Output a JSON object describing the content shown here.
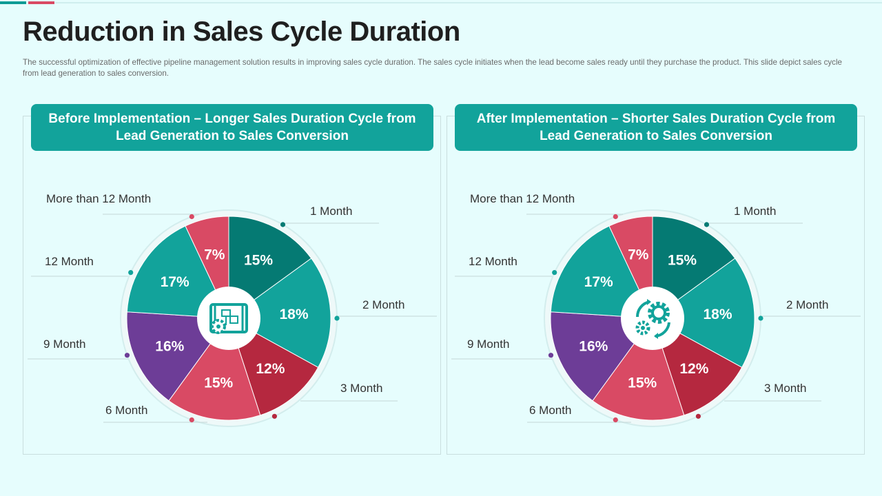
{
  "title": "Reduction in Sales Cycle Duration",
  "subtitle": "The successful optimization of effective pipeline management solution results in improving sales cycle duration. The sales cycle initiates when the lead become sales ready until they purchase the product. This slide depict sales cycle from lead generation to sales conversion.",
  "colors": {
    "dark_teal": "#057a73",
    "teal": "#12a39b",
    "crimson": "#b5283f",
    "pink_red": "#d94a64",
    "purple": "#6d3d97"
  },
  "panels": [
    {
      "header": "Before Implementation – Longer Sales Duration Cycle from Lead Generation to Sales Conversion",
      "center_icon": "blueprint-gear-icon"
    },
    {
      "header": "After Implementation – Shorter Sales Duration Cycle from Lead Generation to Sales Conversion",
      "center_icon": "gears-cycle-icon"
    }
  ],
  "chart_data": [
    {
      "type": "pie",
      "title": "Before Implementation – Longer Sales Duration Cycle from Lead Generation to Sales Conversion",
      "categories": [
        "1 Month",
        "2 Month",
        "3 Month",
        "6 Month",
        "9 Month",
        "12 Month",
        "More than 12 Month"
      ],
      "values": [
        15,
        18,
        12,
        15,
        16,
        17,
        7
      ],
      "value_labels": [
        "15%",
        "18%",
        "12%",
        "15%",
        "16%",
        "17%",
        "7%"
      ],
      "colors": [
        "#057a73",
        "#12a39b",
        "#b5283f",
        "#d94a64",
        "#6d3d97",
        "#12a39b",
        "#d94a64"
      ],
      "unit": "%"
    },
    {
      "type": "pie",
      "title": "After Implementation – Shorter Sales Duration Cycle from Lead Generation to Sales Conversion",
      "categories": [
        "1 Month",
        "2 Month",
        "3 Month",
        "6 Month",
        "9 Month",
        "12 Month",
        "More than 12 Month"
      ],
      "values": [
        15,
        18,
        12,
        15,
        16,
        17,
        7
      ],
      "value_labels": [
        "15%",
        "18%",
        "12%",
        "15%",
        "16%",
        "17%",
        "7%"
      ],
      "colors": [
        "#057a73",
        "#12a39b",
        "#b5283f",
        "#d94a64",
        "#6d3d97",
        "#12a39b",
        "#d94a64"
      ],
      "unit": "%"
    }
  ]
}
